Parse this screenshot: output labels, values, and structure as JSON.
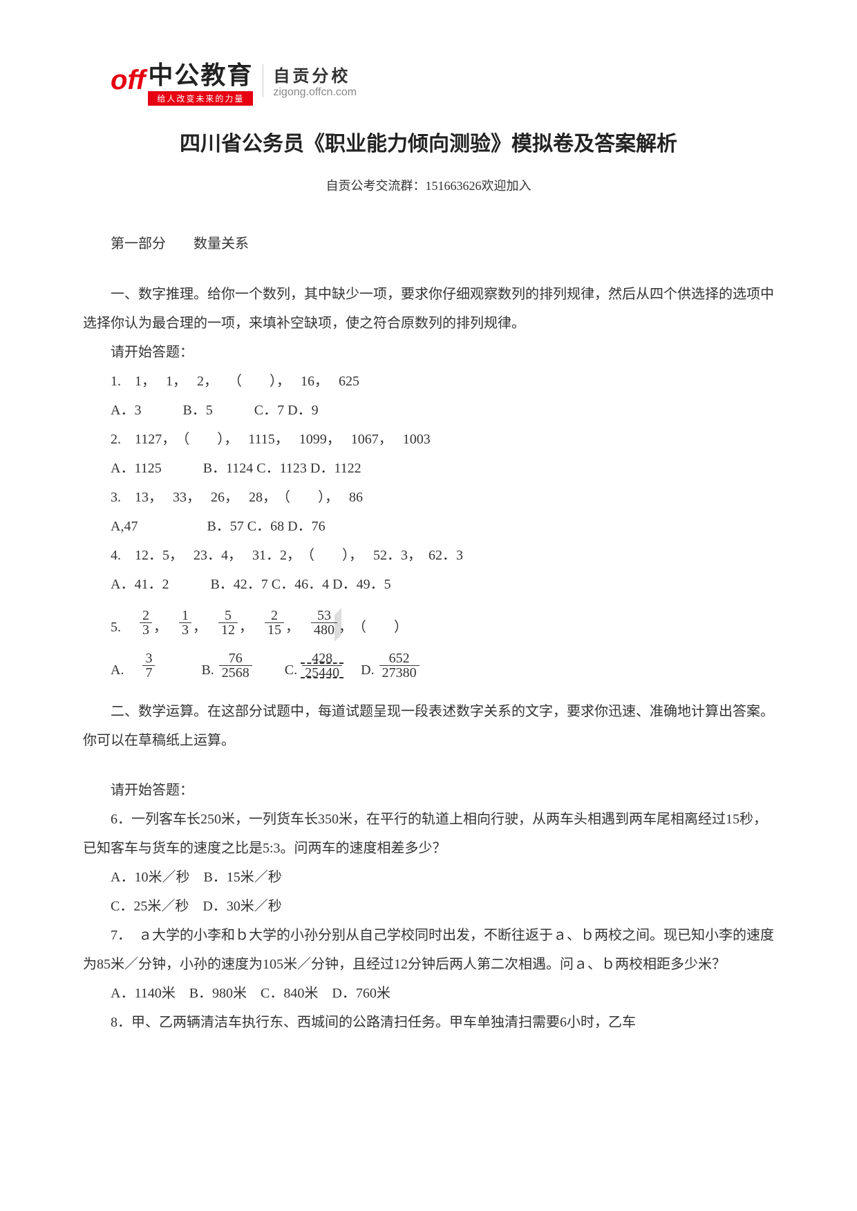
{
  "logo": {
    "icon_text": "off",
    "cn_text": "中公教育",
    "tagline": "给人改变未来的力量",
    "branch": "自贡分校",
    "url": "zigong.offcn.com",
    "icon_color": "#e60012",
    "tagline_bg": "#e60012",
    "tagline_fg": "#ffffff"
  },
  "title": "四川省公务员《职业能力倾向测验》模拟卷及答案解析",
  "subinfo": "自贡公考交流群：151663626欢迎加入",
  "section1_header": "第一部分　　数量关系",
  "part1": {
    "instruction": "一、数字推理。给你一个数列，其中缺少一项，要求你仔细观察数列的排列规律，然后从四个供选择的选项中选择你认为最合理的一项，来填补空缺项，使之符合原数列的排列规律。",
    "begin": "请开始答题：",
    "q1": {
      "stem": "1.　1，　 1，　 2，　 （　　），　 16，　 625",
      "opts": "A．3　　　B．5　　　C．7 D．9"
    },
    "q2": {
      "stem": "2.　1127，　（　　），　 1115，　 1099，　 1067，　 1003",
      "opts": "A．1125　　　B．1124 C．1123 D．1122"
    },
    "q3": {
      "stem": "3.　13，　 33，　 26，　 28，　（　　），　 86",
      "opts": "A,47　　　　　B．57 C．68 D．76"
    },
    "q4": {
      "stem": "4.　12．5，　 23．4，　 31．2，　（　　），　 52．3，　62．3",
      "opts": "A．41．2　　　B．42．7 C．46．4 D．49．5"
    },
    "q5": {
      "lead": "5.　",
      "terms": [
        {
          "num": "2",
          "den": "3"
        },
        {
          "num": "1",
          "den": "3"
        },
        {
          "num": "5",
          "den": "12"
        },
        {
          "num": "2",
          "den": "15"
        },
        {
          "num": "53",
          "den": "480"
        }
      ],
      "sep": "，",
      "tail": "，　（　　）",
      "opts_lead": [
        "A.　",
        "　　　B. ",
        "　　C. ",
        "　D. "
      ],
      "opts": [
        {
          "num": "3",
          "den": "7"
        },
        {
          "num": "76",
          "den": "2568"
        },
        {
          "num": "428",
          "den": "25440"
        },
        {
          "num": "652",
          "den": "27380"
        }
      ]
    }
  },
  "part2": {
    "instruction": "二、数学运算。在这部分试题中，每道试题呈现一段表述数字关系的文字，要求你迅速、准确地计算出答案。你可以在草稿纸上运算。",
    "begin": "请开始答题："
  },
  "q6": {
    "stem": "6．一列客车长250米，一列货车长350米，在平行的轨道上相向行驶，从两车头相遇到两车尾相离经过15秒，已知客车与货车的速度之比是5:3。问两车的速度相差多少？",
    "opts1": "A．10米／秒　B．15米／秒",
    "opts2": "C．25米／秒　D．30米／秒"
  },
  "q7": {
    "stem": "7．　ａ大学的小李和ｂ大学的小孙分别从自己学校同时出发，不断往返于ａ、ｂ两校之间。现已知小李的速度为85米／分钟，小孙的速度为105米／分钟，且经过12分钟后两人第二次相遇。问ａ、ｂ两校相距多少米？",
    "opts": "A．1140米　B．980米　C．840米　D．760米"
  },
  "q8": {
    "stem": "8．甲、乙两辆清洁车执行东、西城间的公路清扫任务。甲车单独清扫需要6小时，乙车"
  },
  "colors": {
    "text": "#333333",
    "background": "#ffffff"
  }
}
